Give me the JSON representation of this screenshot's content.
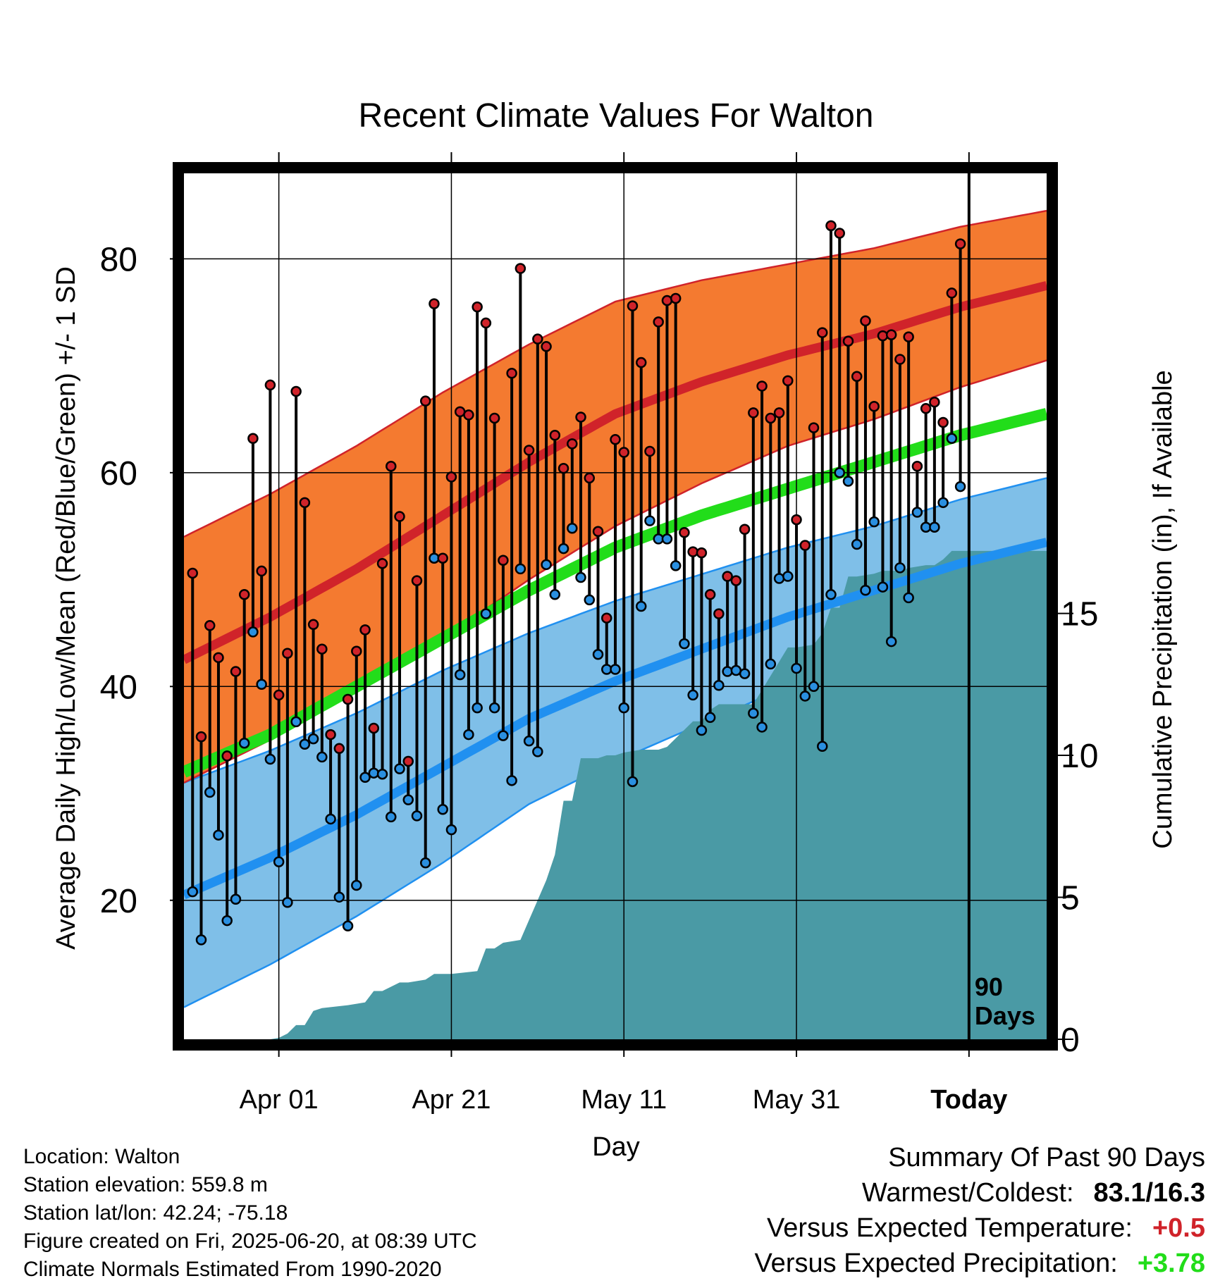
{
  "chart_data": {
    "type": "line",
    "title": "Recent Climate Values For Walton",
    "xlabel": "Day",
    "ylabel": "Average Daily High/Low/Mean (Red/Blue/Green) +/- 1 SD",
    "ylabel_right": "Cumulative Precipitation (in), If Available",
    "x_tick_labels": [
      "Apr 01",
      "Apr 21",
      "May 11",
      "May 31",
      "Today"
    ],
    "x_tick_days": [
      -80,
      -60,
      -40,
      -20,
      0
    ],
    "xlim_days": [
      -91,
      9
    ],
    "ylim": [
      7,
      88
    ],
    "y_ticks": [
      20,
      40,
      60,
      80
    ],
    "y_minor_ticks": [
      10,
      30,
      50,
      70
    ],
    "ylim_right": [
      0,
      30.5
    ],
    "y_ticks_right": [
      0,
      5,
      10,
      15
    ],
    "today_label": "90\nDays",
    "grid": true,
    "colors": {
      "high_band": "#f47a30",
      "high_line": "#d0232a",
      "low_band": "#7fbfe8",
      "low_line": "#2090f0",
      "mean_line": "#22dd1a",
      "precip": "#4a9aa5",
      "high_marker": "#d0232a",
      "low_marker": "#2a8fe0"
    },
    "normals_days": [
      -91,
      -81,
      -71,
      -61,
      -51,
      -41,
      -31,
      -21,
      -11,
      -1,
      9
    ],
    "normal_high": [
      42.5,
      46.5,
      51.0,
      56.0,
      61.0,
      65.5,
      68.5,
      71.0,
      73.0,
      75.5,
      77.5
    ],
    "normal_high_sd": [
      11.5,
      11.5,
      11.5,
      11.5,
      11.0,
      10.5,
      9.5,
      8.5,
      8.0,
      7.5,
      7.0
    ],
    "normal_low": [
      20.5,
      24.0,
      28.0,
      32.5,
      37.0,
      40.5,
      43.5,
      46.5,
      49.0,
      51.5,
      53.5
    ],
    "normal_low_sd": [
      10.5,
      10.0,
      9.5,
      9.0,
      8.0,
      7.5,
      7.0,
      6.5,
      6.0,
      6.0,
      6.0
    ],
    "normal_mean": [
      32.0,
      35.5,
      40.0,
      44.5,
      49.0,
      53.0,
      56.0,
      58.5,
      61.0,
      63.5,
      65.5
    ],
    "series": [
      {
        "name": "High",
        "x": [
          -90,
          -89,
          -88,
          -87,
          -86,
          -85,
          -84,
          -83,
          -82,
          -81,
          -80,
          -79,
          -78,
          -77,
          -76,
          -75,
          -74,
          -73,
          -72,
          -71,
          -70,
          -69,
          -68,
          -67,
          -66,
          -65,
          -64,
          -63,
          -62,
          -61,
          -60,
          -59,
          -58,
          -57,
          -56,
          -55,
          -54,
          -53,
          -52,
          -51,
          -50,
          -49,
          -48,
          -47,
          -46,
          -45,
          -44,
          -43,
          -42,
          -41,
          -40,
          -39,
          -38,
          -37,
          -36,
          -35,
          -34,
          -33,
          -32,
          -31,
          -30,
          -29,
          -28,
          -27,
          -26,
          -25,
          -24,
          -23,
          -22,
          -21,
          -20,
          -19,
          -18,
          -17,
          -16,
          -15,
          -14,
          -13,
          -12,
          -11,
          -10,
          -9,
          -8,
          -7,
          -6,
          -5,
          -4,
          -3,
          -2,
          -1
        ],
        "values": [
          50.6,
          35.3,
          45.7,
          42.7,
          33.5,
          41.4,
          48.6,
          63.2,
          50.8,
          68.2,
          39.2,
          43.1,
          67.6,
          57.2,
          45.8,
          43.5,
          35.5,
          34.2,
          38.8,
          43.3,
          45.3,
          36.1,
          51.5,
          60.6,
          55.9,
          33.0,
          49.9,
          66.7,
          75.8,
          52.0,
          59.6,
          65.7,
          65.4,
          75.5,
          74.0,
          65.1,
          51.8,
          69.3,
          79.1,
          62.1,
          72.5,
          71.8,
          63.5,
          60.4,
          62.7,
          65.2,
          59.5,
          54.5,
          46.4,
          63.1,
          61.9,
          75.6,
          70.3,
          62.0,
          74.1,
          76.1,
          76.3,
          54.4,
          52.6,
          52.5,
          48.6,
          46.8,
          50.3,
          49.9,
          54.7,
          65.6,
          68.1,
          65.1,
          65.6,
          68.6,
          55.6,
          53.2,
          64.2,
          73.1,
          83.1,
          82.4,
          72.3,
          69.0,
          74.2,
          66.2,
          72.8,
          72.9,
          70.6,
          72.7,
          60.6,
          66.0,
          66.6,
          64.7,
          76.8,
          81.4
        ]
      },
      {
        "name": "Low",
        "x": [
          -90,
          -89,
          -88,
          -87,
          -86,
          -85,
          -84,
          -83,
          -82,
          -81,
          -80,
          -79,
          -78,
          -77,
          -76,
          -75,
          -74,
          -73,
          -72,
          -71,
          -70,
          -69,
          -68,
          -67,
          -66,
          -65,
          -64,
          -63,
          -62,
          -61,
          -60,
          -59,
          -58,
          -57,
          -56,
          -55,
          -54,
          -53,
          -52,
          -51,
          -50,
          -49,
          -48,
          -47,
          -46,
          -45,
          -44,
          -43,
          -42,
          -41,
          -40,
          -39,
          -38,
          -37,
          -36,
          -35,
          -34,
          -33,
          -32,
          -31,
          -30,
          -29,
          -28,
          -27,
          -26,
          -25,
          -24,
          -23,
          -22,
          -21,
          -20,
          -19,
          -18,
          -17,
          -16,
          -15,
          -14,
          -13,
          -12,
          -11,
          -10,
          -9,
          -8,
          -7,
          -6,
          -5,
          -4,
          -3,
          -2,
          -1
        ],
        "values": [
          20.8,
          16.3,
          30.1,
          26.1,
          18.1,
          20.1,
          34.7,
          45.1,
          40.2,
          33.2,
          23.6,
          19.8,
          36.7,
          34.6,
          35.1,
          33.4,
          27.6,
          20.3,
          17.6,
          21.4,
          31.5,
          31.9,
          31.8,
          27.8,
          32.3,
          29.4,
          27.9,
          23.5,
          52.0,
          28.5,
          26.6,
          41.1,
          35.5,
          38.0,
          46.8,
          38.0,
          35.4,
          31.2,
          51.0,
          34.9,
          33.9,
          51.4,
          48.6,
          52.9,
          54.8,
          50.2,
          48.1,
          43.0,
          41.6,
          41.6,
          38.0,
          31.1,
          47.5,
          55.5,
          53.8,
          53.8,
          51.3,
          44.0,
          39.2,
          35.9,
          37.1,
          40.1,
          41.4,
          41.5,
          41.2,
          37.5,
          36.2,
          42.1,
          50.1,
          50.3,
          41.7,
          39.1,
          40.0,
          34.4,
          48.6,
          60.0,
          59.2,
          53.3,
          49.0,
          55.4,
          49.3,
          44.2,
          51.1,
          48.3,
          56.3,
          54.9,
          54.9,
          57.2,
          63.2,
          58.7
        ]
      },
      {
        "name": "Cumulative Precipitation",
        "x": [
          -90,
          -81,
          -80,
          -79,
          -78,
          -77,
          -76,
          -75,
          -72,
          -70,
          -69,
          -68,
          -66,
          -65,
          -63,
          -62,
          -60,
          -57,
          -56,
          -55,
          -54,
          -52,
          -51,
          -49,
          -48,
          -47,
          -46,
          -45,
          -44,
          -43,
          -42,
          -41,
          -40,
          -38,
          -36,
          -35,
          -34,
          -32,
          -31,
          -30,
          -29,
          -28,
          -25,
          -21,
          -20,
          -18,
          -17,
          -16,
          -15,
          -14,
          -13,
          -11,
          -10,
          -8,
          -7,
          -5,
          -4,
          -3,
          -2,
          -1,
          0,
          9
        ],
        "values": [
          0,
          0,
          0.05,
          0.2,
          0.5,
          0.5,
          1.0,
          1.1,
          1.2,
          1.3,
          1.7,
          1.7,
          2.0,
          2.0,
          2.1,
          2.3,
          2.3,
          2.4,
          3.2,
          3.2,
          3.4,
          3.5,
          4.2,
          5.6,
          6.5,
          8.4,
          8.4,
          9.9,
          9.9,
          9.9,
          10.0,
          10.0,
          10.1,
          10.2,
          10.2,
          10.3,
          10.6,
          11.2,
          11.2,
          11.6,
          11.8,
          11.8,
          11.8,
          13.8,
          13.8,
          13.9,
          14.3,
          15.2,
          15.2,
          16.3,
          16.3,
          16.4,
          16.5,
          16.5,
          16.6,
          16.7,
          16.7,
          16.9,
          17.2,
          17.2,
          17.2,
          17.2
        ]
      }
    ]
  },
  "info": {
    "location": "Location: Walton",
    "elevation": "Station elevation: 559.8 m",
    "latlon": "Station lat/lon: 42.24; -75.18",
    "created": "Figure created on Fri, 2025-06-20, at 08:39 UTC",
    "normals": "Climate Normals Estimated From 1990-2020"
  },
  "summary": {
    "title": "Summary Of Past 90 Days",
    "warmest_coldest_label": "Warmest/Coldest:",
    "warmest_coldest_value": "83.1/16.3",
    "temp_label": "Versus Expected Temperature:",
    "temp_value": "+0.5",
    "temp_color": "#d0232a",
    "precip_label": "Versus Expected Precipitation:",
    "precip_value": "+3.78",
    "precip_color": "#22dd1a"
  }
}
